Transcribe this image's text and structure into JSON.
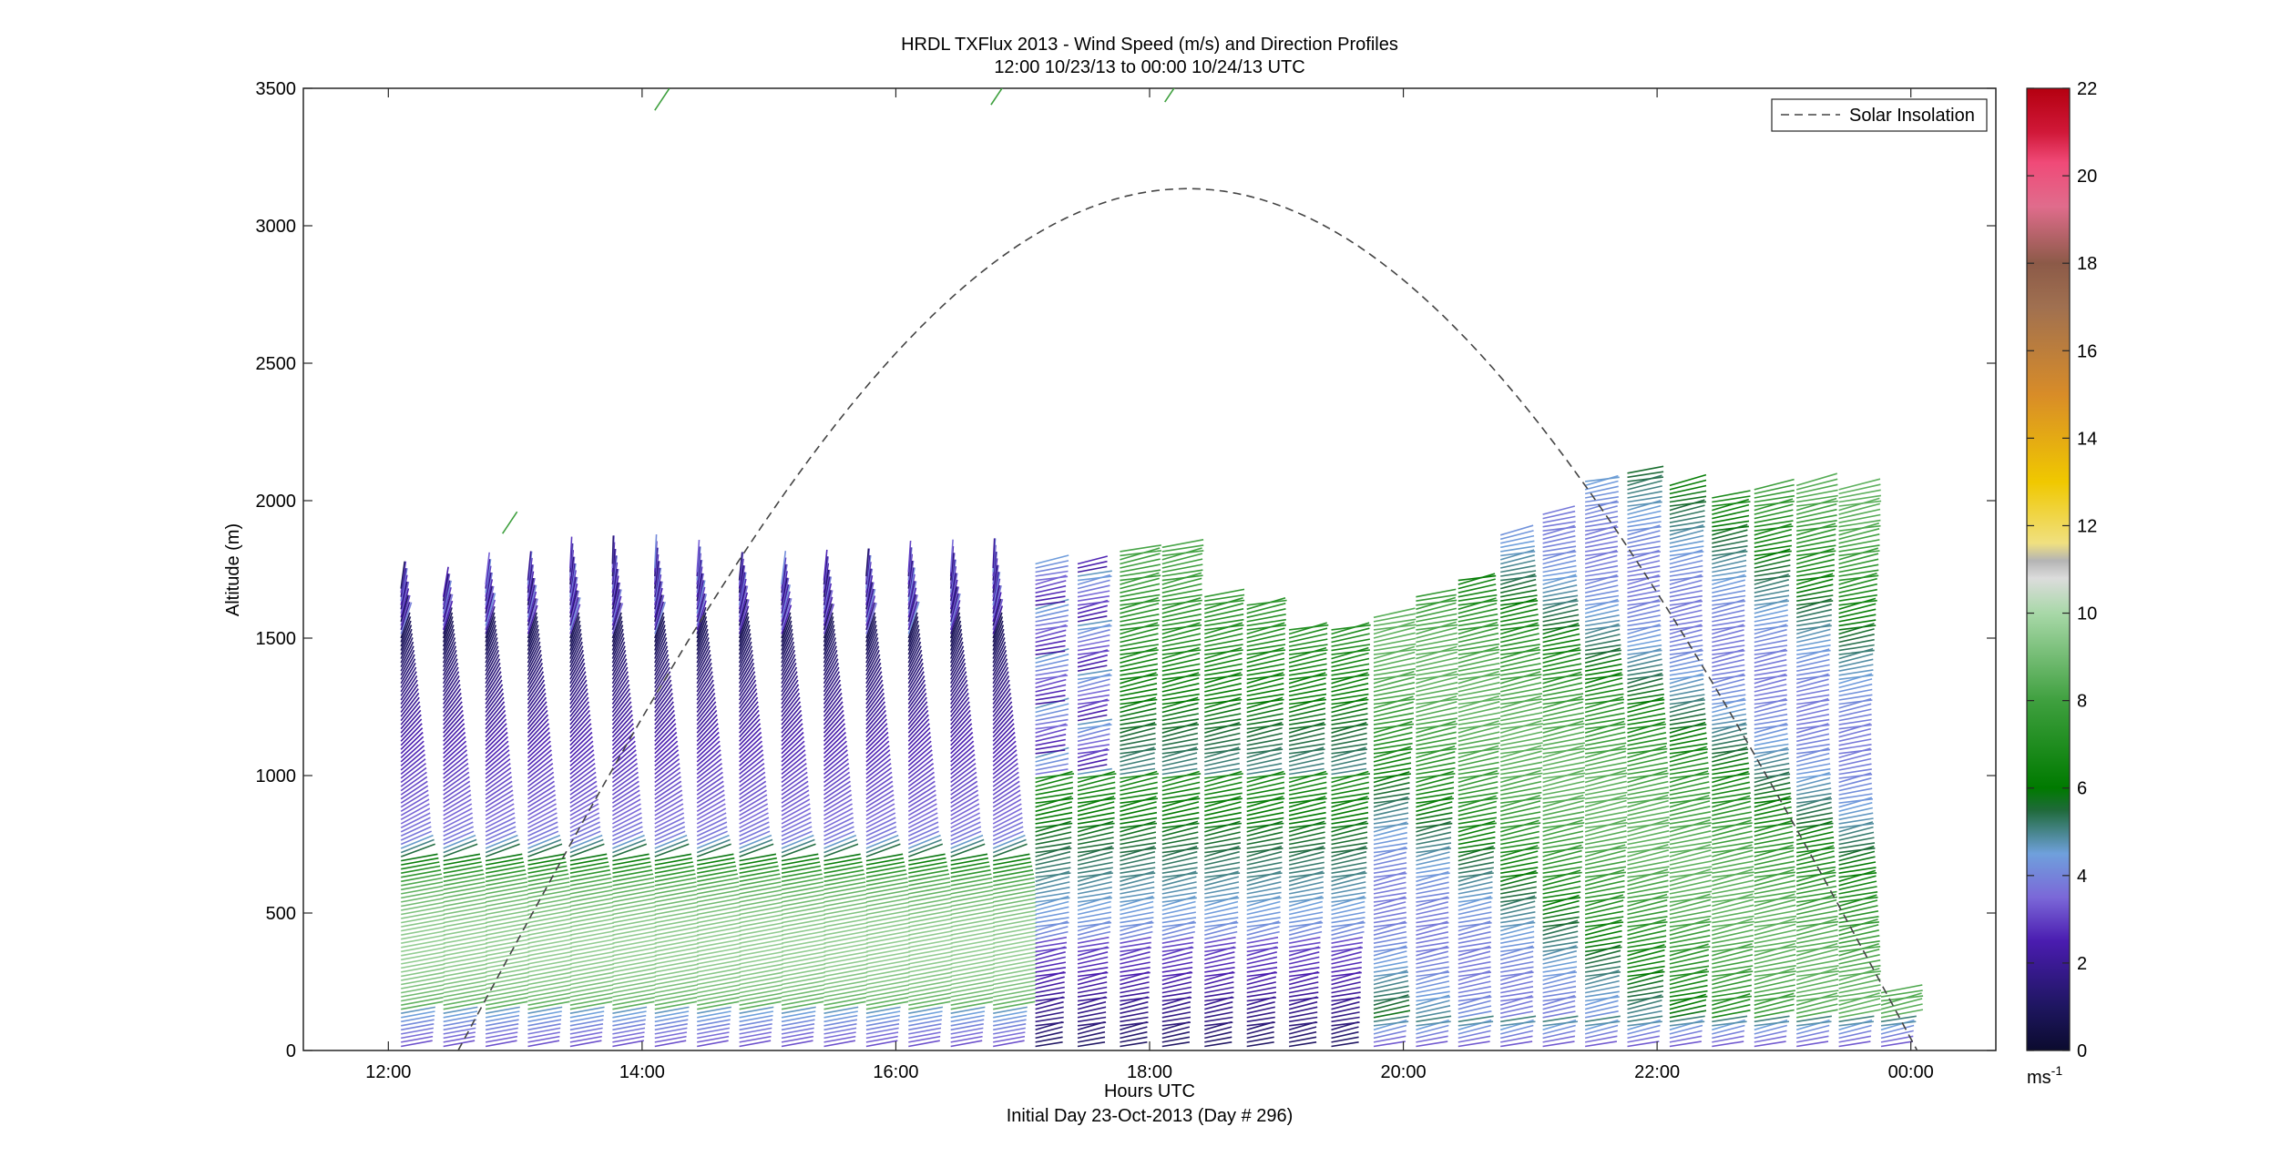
{
  "chart_data": {
    "type": "wind-barb-profile",
    "title": "HRDL TXFlux 2013 - Wind Speed (m/s) and Direction Profiles",
    "subtitle": "12:00 10/23/13 to 00:00 10/24/13  UTC",
    "xlabel": "Hours UTC",
    "xlabel2": "Initial Day 23-Oct-2013 (Day # 296)",
    "ylabel": "Altitude (m)",
    "xlim": [
      11.33,
      24.67
    ],
    "ylim": [
      0,
      3500
    ],
    "xticks": [
      12,
      14,
      16,
      18,
      20,
      22,
      24
    ],
    "xtick_labels": [
      "12:00",
      "14:00",
      "16:00",
      "18:00",
      "20:00",
      "22:00",
      "00:00"
    ],
    "yticks": [
      0,
      500,
      1000,
      1500,
      2000,
      2500,
      3000,
      3500
    ],
    "ytick_labels": [
      "0",
      "500",
      "1000",
      "1500",
      "2000",
      "2500",
      "3000",
      "3500"
    ],
    "grid": false,
    "legend": {
      "position": "top-right",
      "entries": [
        "Solar Insolation"
      ]
    },
    "colorbar": {
      "range": [
        0,
        22
      ],
      "ticks": [
        0,
        2,
        4,
        6,
        8,
        10,
        12,
        14,
        16,
        18,
        20,
        22
      ],
      "tick_labels": [
        "0",
        "2",
        "4",
        "6",
        "8",
        "10",
        "12",
        "14",
        "16",
        "18",
        "20",
        "22"
      ],
      "unit_base": "ms",
      "unit_exp": "-1",
      "stops": [
        {
          "v": 0,
          "c": "#0b0b2e"
        },
        {
          "v": 1,
          "c": "#1e1660"
        },
        {
          "v": 2.5,
          "c": "#4a1cb0"
        },
        {
          "v": 3.5,
          "c": "#7b68d8"
        },
        {
          "v": 4.5,
          "c": "#6fa0dc"
        },
        {
          "v": 5.5,
          "c": "#1f6a3a"
        },
        {
          "v": 6,
          "c": "#007a00"
        },
        {
          "v": 8,
          "c": "#3fa03f"
        },
        {
          "v": 10,
          "c": "#a8d8a8"
        },
        {
          "v": 10.8,
          "c": "#dcdcdc"
        },
        {
          "v": 11.2,
          "c": "#b4b4b4"
        },
        {
          "v": 11.6,
          "c": "#f0e080"
        },
        {
          "v": 13,
          "c": "#f0c800"
        },
        {
          "v": 15,
          "c": "#d88c28"
        },
        {
          "v": 17,
          "c": "#a07050"
        },
        {
          "v": 18,
          "c": "#8c5a48"
        },
        {
          "v": 19.3,
          "c": "#e06c8c"
        },
        {
          "v": 20.3,
          "c": "#f04a78"
        },
        {
          "v": 21,
          "c": "#d01838"
        },
        {
          "v": 22,
          "c": "#b40010"
        }
      ]
    },
    "solar_insolation": {
      "start_hour": 12.55,
      "end_hour": 24.05,
      "peak_hour": 18.3,
      "peak_altitude": 3135
    },
    "profiles": {
      "times_start": 12.1,
      "interval_hours": 0.3333,
      "count": 36,
      "top_altitudes": [
        1680,
        1660,
        1700,
        1720,
        1760,
        1780,
        1760,
        1740,
        1720,
        1700,
        1720,
        1730,
        1740,
        1740,
        1760,
        1780,
        1780,
        1820,
        1840,
        1660,
        1620,
        1540,
        1540,
        1580,
        1660,
        1720,
        1880,
        1960,
        2080,
        2100,
        2060,
        2020,
        2040,
        2060,
        2040,
        220
      ],
      "sparse_barbs": [
        {
          "hour": 14.1,
          "altitude": 3420
        },
        {
          "hour": 16.75,
          "altitude": 3440
        },
        {
          "hour": 18.12,
          "altitude": 3450
        },
        {
          "hour": 12.9,
          "altitude": 1880
        }
      ]
    }
  }
}
